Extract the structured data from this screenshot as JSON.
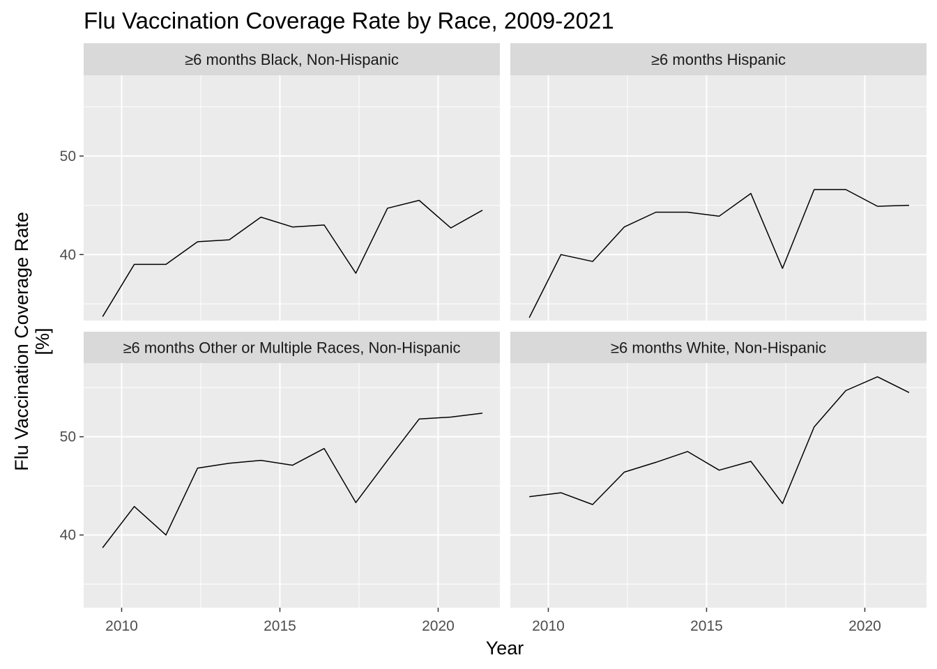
{
  "chart_data": {
    "type": "line",
    "title": "Flu Vaccination Coverage Rate by Race, 2009-2021",
    "xlabel": "Year",
    "ylabel_lines": [
      "Flu Vaccination Coverage Rate",
      "[%]"
    ],
    "x_ticks": [
      2010,
      2015,
      2020
    ],
    "y_ticks": [
      40,
      50
    ],
    "xlim": [
      2008.8,
      2021.95
    ],
    "ylim_top_row": [
      33.3,
      58.2
    ],
    "ylim_bottom_row": [
      32.6,
      57.5
    ],
    "grid": true,
    "legend": "none",
    "line_color": "#000000",
    "panel_background": "#ebebeb",
    "strip_background": "#d9d9d9",
    "grid_color": "#ffffff",
    "x": [
      2009.4,
      2010.4,
      2011.4,
      2012.4,
      2013.4,
      2014.4,
      2015.4,
      2016.4,
      2017.4,
      2018.4,
      2019.4,
      2020.4,
      2021.4
    ],
    "panels": [
      {
        "name": "≥6 months Black, Non-Hispanic",
        "row": 0,
        "col": 0,
        "values": [
          33.7,
          39.0,
          39.0,
          41.3,
          41.5,
          43.8,
          42.8,
          43.0,
          38.1,
          44.7,
          45.5,
          42.7,
          44.5
        ]
      },
      {
        "name": "≥6 months Hispanic",
        "row": 0,
        "col": 1,
        "values": [
          33.6,
          40.0,
          39.3,
          42.8,
          44.3,
          44.3,
          43.9,
          46.2,
          38.6,
          46.6,
          46.6,
          44.9,
          45.0
        ]
      },
      {
        "name": "≥6 months Other or Multiple Races, Non-Hispanic",
        "row": 1,
        "col": 0,
        "values": [
          38.7,
          42.9,
          40.0,
          46.8,
          47.3,
          47.6,
          47.1,
          48.8,
          43.3,
          47.6,
          51.8,
          52.0,
          52.4
        ]
      },
      {
        "name": "≥6 months White, Non-Hispanic",
        "row": 1,
        "col": 1,
        "values": [
          43.9,
          44.3,
          43.1,
          46.4,
          47.4,
          48.5,
          46.6,
          47.5,
          43.2,
          51.0,
          54.7,
          56.1,
          54.5
        ]
      }
    ]
  }
}
